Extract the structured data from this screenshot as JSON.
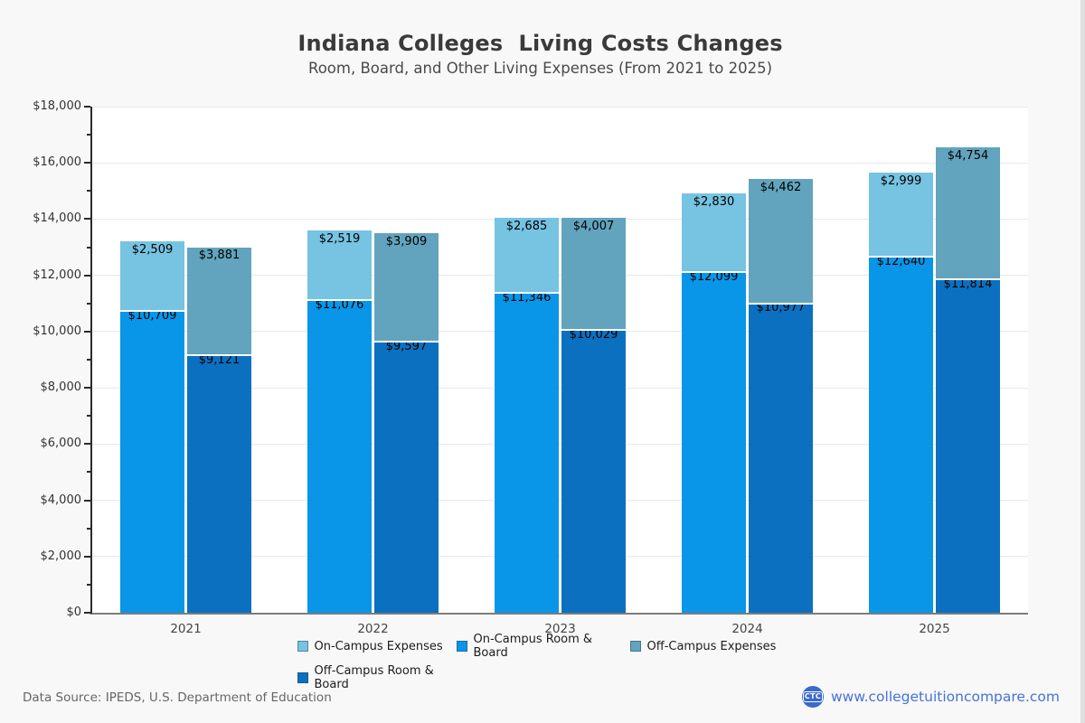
{
  "header": {
    "title": "Indiana Colleges  Living Costs Changes",
    "subtitle": "Room, Board, and Other Living Expenses (From 2021 to 2025)"
  },
  "footer": {
    "data_source": "Data Source: IPEDS, U.S. Department of Education",
    "logo_text": "CTC",
    "site_label": "www.collegetuitioncompare.com"
  },
  "chart_data": {
    "type": "bar",
    "stacked": true,
    "title": "Indiana Colleges  Living Costs Changes",
    "subtitle": "Room, Board, and Other Living Expenses (From 2021 to 2025)",
    "categories": [
      "2021",
      "2022",
      "2023",
      "2024",
      "2025"
    ],
    "series": [
      {
        "name": "On-Campus Room & Board",
        "stack": "on",
        "order": 0,
        "color": "#0996e8",
        "values": [
          10709,
          11076,
          11346,
          12099,
          12640
        ]
      },
      {
        "name": "On-Campus Expenses",
        "stack": "on",
        "order": 1,
        "color": "#76c3e2",
        "values": [
          2509,
          2519,
          2685,
          2830,
          2999
        ]
      },
      {
        "name": "Off-Campus Room & Board",
        "stack": "off",
        "order": 0,
        "color": "#0b70c0",
        "values": [
          9121,
          9597,
          10029,
          10977,
          11814
        ]
      },
      {
        "name": "Off-Campus Expenses",
        "stack": "off",
        "order": 1,
        "color": "#62a4bd",
        "values": [
          3881,
          3909,
          4007,
          4462,
          4754
        ]
      }
    ],
    "legend": [
      {
        "label": "On-Campus Expenses",
        "color": "#76c3e2"
      },
      {
        "label": "On-Campus Room & Board",
        "color": "#0996e8"
      },
      {
        "label": "Off-Campus Expenses",
        "color": "#62a4bd"
      },
      {
        "label": "Off-Campus Room & Board",
        "color": "#0b70c0"
      }
    ],
    "legend_position": "bottom",
    "grid": "horizontal",
    "ylim": [
      0,
      18000
    ],
    "ytick_step": 2000,
    "minor_tick_step": 1000,
    "value_prefix": "$",
    "ytick_labels": [
      "$0",
      "$2,000",
      "$4,000",
      "$6,000",
      "$8,000",
      "$10,000",
      "$12,000",
      "$14,000",
      "$16,000",
      "$18,000"
    ]
  }
}
